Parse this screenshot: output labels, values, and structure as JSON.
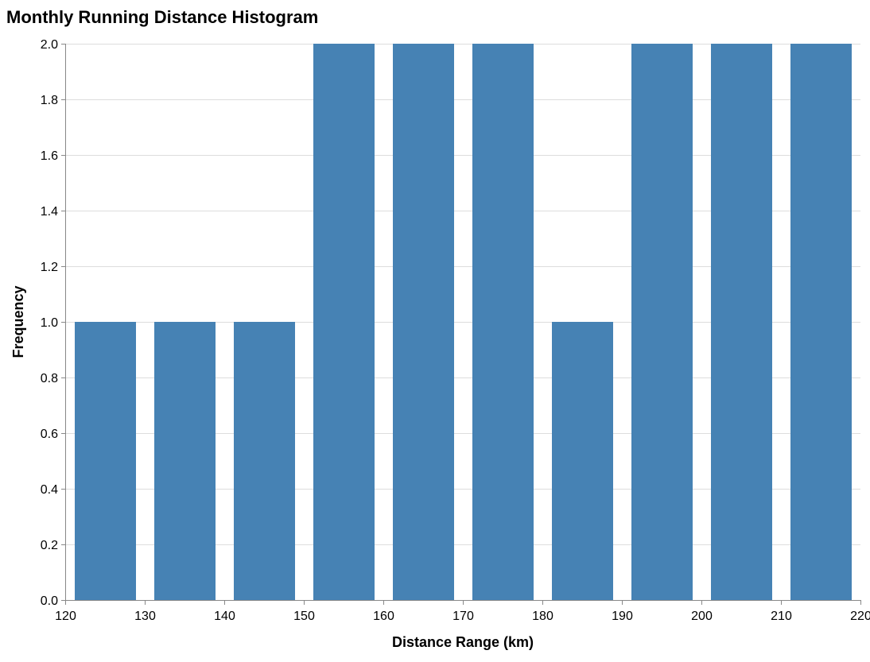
{
  "chart_data": {
    "type": "bar",
    "title": "Monthly Running Distance Histogram",
    "xlabel": "Distance Range (km)",
    "ylabel": "Frequency",
    "bins": [
      {
        "start": 120,
        "end": 130,
        "value": 1
      },
      {
        "start": 130,
        "end": 140,
        "value": 1
      },
      {
        "start": 140,
        "end": 150,
        "value": 1
      },
      {
        "start": 150,
        "end": 160,
        "value": 2
      },
      {
        "start": 160,
        "end": 170,
        "value": 2
      },
      {
        "start": 170,
        "end": 180,
        "value": 2
      },
      {
        "start": 180,
        "end": 190,
        "value": 1
      },
      {
        "start": 190,
        "end": 200,
        "value": 2
      },
      {
        "start": 200,
        "end": 210,
        "value": 2
      },
      {
        "start": 210,
        "end": 220,
        "value": 2
      }
    ],
    "xlim": [
      120,
      220
    ],
    "ylim": [
      0,
      2
    ],
    "x_ticks": [
      "120",
      "130",
      "140",
      "150",
      "160",
      "170",
      "180",
      "190",
      "200",
      "210",
      "220"
    ],
    "y_ticks": [
      "0.0",
      "0.2",
      "0.4",
      "0.6",
      "0.8",
      "1.0",
      "1.2",
      "1.4",
      "1.6",
      "1.8",
      "2.0"
    ],
    "grid": true,
    "legend": "none",
    "bar_color": "#4682b4"
  }
}
